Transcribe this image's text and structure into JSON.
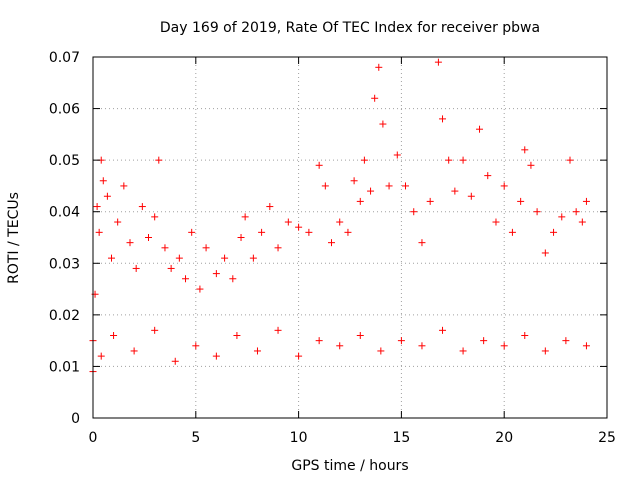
{
  "chart_data": {
    "type": "scatter",
    "title": "Day 169 of 2019, Rate Of TEC Index for receiver pbwa",
    "xlabel": "GPS time / hours",
    "ylabel": "ROTI / TECUs",
    "xlim": [
      0,
      25
    ],
    "ylim": [
      0,
      0.07
    ],
    "xticks": [
      0,
      5,
      10,
      15,
      20,
      25
    ],
    "xtick_labels": [
      "0",
      "5",
      "10",
      "15",
      "20",
      "25"
    ],
    "yticks": [
      0,
      0.01,
      0.02,
      0.03,
      0.04,
      0.05,
      0.06,
      0.07
    ],
    "ytick_labels": [
      "0",
      "0.01",
      "0.02",
      "0.03",
      "0.04",
      "0.05",
      "0.06",
      "0.07"
    ],
    "grid": true,
    "marker": "+",
    "marker_color": "#ff0000",
    "series": [
      {
        "name": "ROTI",
        "points": [
          [
            0.0,
            0.009
          ],
          [
            0.1,
            0.024
          ],
          [
            0.2,
            0.041
          ],
          [
            0.3,
            0.036
          ],
          [
            0.4,
            0.05
          ],
          [
            0.5,
            0.046
          ],
          [
            0.7,
            0.043
          ],
          [
            0.9,
            0.031
          ],
          [
            1.2,
            0.038
          ],
          [
            1.5,
            0.045
          ],
          [
            1.8,
            0.034
          ],
          [
            2.1,
            0.029
          ],
          [
            2.4,
            0.041
          ],
          [
            2.7,
            0.035
          ],
          [
            3.0,
            0.039
          ],
          [
            3.2,
            0.05
          ],
          [
            3.5,
            0.033
          ],
          [
            3.8,
            0.029
          ],
          [
            4.2,
            0.031
          ],
          [
            4.5,
            0.027
          ],
          [
            4.8,
            0.036
          ],
          [
            5.2,
            0.025
          ],
          [
            5.5,
            0.033
          ],
          [
            6.0,
            0.028
          ],
          [
            6.4,
            0.031
          ],
          [
            6.8,
            0.027
          ],
          [
            7.2,
            0.035
          ],
          [
            7.4,
            0.039
          ],
          [
            7.8,
            0.031
          ],
          [
            8.2,
            0.036
          ],
          [
            8.6,
            0.041
          ],
          [
            9.0,
            0.033
          ],
          [
            9.5,
            0.038
          ],
          [
            10.0,
            0.037
          ],
          [
            10.5,
            0.036
          ],
          [
            11.0,
            0.049
          ],
          [
            11.3,
            0.045
          ],
          [
            11.6,
            0.034
          ],
          [
            12.0,
            0.038
          ],
          [
            12.4,
            0.036
          ],
          [
            12.7,
            0.046
          ],
          [
            13.0,
            0.042
          ],
          [
            13.2,
            0.05
          ],
          [
            13.5,
            0.044
          ],
          [
            13.7,
            0.062
          ],
          [
            13.9,
            0.068
          ],
          [
            14.1,
            0.057
          ],
          [
            14.4,
            0.045
          ],
          [
            14.8,
            0.051
          ],
          [
            15.2,
            0.045
          ],
          [
            15.6,
            0.04
          ],
          [
            16.0,
            0.034
          ],
          [
            16.4,
            0.042
          ],
          [
            16.8,
            0.069
          ],
          [
            17.0,
            0.058
          ],
          [
            17.3,
            0.05
          ],
          [
            17.6,
            0.044
          ],
          [
            18.0,
            0.05
          ],
          [
            18.4,
            0.043
          ],
          [
            18.8,
            0.056
          ],
          [
            19.2,
            0.047
          ],
          [
            19.6,
            0.038
          ],
          [
            20.0,
            0.045
          ],
          [
            20.4,
            0.036
          ],
          [
            20.8,
            0.042
          ],
          [
            21.0,
            0.052
          ],
          [
            21.3,
            0.049
          ],
          [
            21.6,
            0.04
          ],
          [
            22.0,
            0.032
          ],
          [
            22.4,
            0.036
          ],
          [
            22.8,
            0.039
          ],
          [
            23.2,
            0.05
          ],
          [
            23.5,
            0.04
          ],
          [
            23.8,
            0.038
          ],
          [
            24.0,
            0.042
          ],
          [
            0.0,
            0.015
          ],
          [
            0.4,
            0.012
          ],
          [
            1.0,
            0.016
          ],
          [
            2.0,
            0.013
          ],
          [
            3.0,
            0.017
          ],
          [
            4.0,
            0.011
          ],
          [
            5.0,
            0.014
          ],
          [
            6.0,
            0.012
          ],
          [
            7.0,
            0.016
          ],
          [
            8.0,
            0.013
          ],
          [
            9.0,
            0.017
          ],
          [
            10.0,
            0.012
          ],
          [
            11.0,
            0.015
          ],
          [
            12.0,
            0.014
          ],
          [
            13.0,
            0.016
          ],
          [
            14.0,
            0.013
          ],
          [
            15.0,
            0.015
          ],
          [
            16.0,
            0.014
          ],
          [
            17.0,
            0.017
          ],
          [
            18.0,
            0.013
          ],
          [
            19.0,
            0.015
          ],
          [
            20.0,
            0.014
          ],
          [
            21.0,
            0.016
          ],
          [
            22.0,
            0.013
          ],
          [
            23.0,
            0.015
          ],
          [
            24.0,
            0.014
          ]
        ]
      }
    ]
  }
}
